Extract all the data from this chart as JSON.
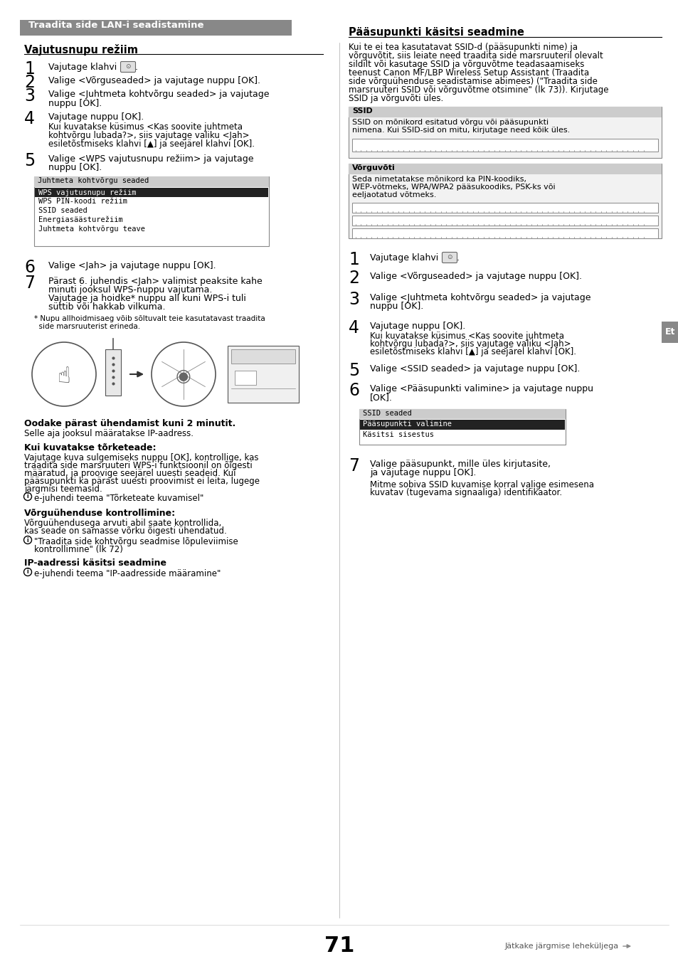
{
  "bg_color": "#ffffff",
  "header_bg": "#888888",
  "header_text": "Traadita side LAN-i seadistamine",
  "header_text_color": "#ffffff",
  "left_section_title": "Vajutusnupu režiim",
  "right_section_title": "Pääsupunkti käsitsi seadmine",
  "left_menu_title": "Juhtmeta kohtvõrgu seaded",
  "left_menu_items": [
    {
      "text": "WPS vajutusnupu režiim",
      "selected": true
    },
    {
      "text": "WPS PIN-koodi režiim",
      "selected": false
    },
    {
      "text": "SSID seaded",
      "selected": false
    },
    {
      "text": "Energiasäästurežiim",
      "selected": false
    },
    {
      "text": "Juhtmeta kohtvõrgu teave",
      "selected": false
    }
  ],
  "wait_text": "Oodake pärast ühendamist kuni 2 minutit.",
  "wait_subtext": "Selle aja jooksul määratakse IP-aadress.",
  "error_title": "Kui kuvatakse tõrketeade:",
  "error_text1": "Vajutage kuva sulgemiseks nuppu [OK], kontrollige, kas",
  "error_text2": "traadita side marsruuteri WPS-i funktsioonil on õigesti",
  "error_text3": "määratud, ja proovige seejärel uuesti seadeid. Kui",
  "error_text4": "pääsupunkti ka pärast uuesti proovimist ei leita, lugege",
  "error_text5": "järgmisi teemasid.",
  "error_link": "e-juhendi teema \"Tõrketeate kuvamisel\"",
  "network_title": "Võrguühenduse kontrollimine:",
  "network_text1": "Võrguühendusega arvuti abil saate kontrollida,",
  "network_text2": "kas seade on samasse võrku õigesti ühendatud.",
  "network_link1": "\"Traadita side kohtvõrgu seadmise lõpuleviimise",
  "network_link2": "kontrollimine\" (lk 72)",
  "ip_title": "IP-aadressi käsitsi seadmine",
  "ip_link": "e-juhendi teema \"IP-aadresside määramine\"",
  "right_intro1": "Kui te ei tea kasutatavat SSID-d (pääsupunkti nime) ja",
  "right_intro2": "võrguvõtit, siis leiate need traadita side marsruuteril olevalt",
  "right_intro3": "sildilt või kasutage SSID ja võrguvõtme teadasaamiseks",
  "right_intro4": "teenust Canon MF/LBP Wireless Setup Assistant (Traadita",
  "right_intro5": "side võrguühenduse seadistamise abimees) (\"Traadita side",
  "right_intro6": "marsruuteri SSID või võrguvõtme otsimine\" (lk 73)). Kirjutage",
  "right_intro7": "SSID ja võrguvõti üles.",
  "ssid_box_title": "SSID",
  "ssid_box_text1": "SSID on mõnikord esitatud võrgu või pääsupunkti",
  "ssid_box_text2": "nimena. Kui SSID-sid on mitu, kirjutage need kõik üles.",
  "net_box_title": "Võrguvõti",
  "net_box_text1": "Seda nimetatakse mõnikord ka PIN-koodiks,",
  "net_box_text2": "WEP-võtmeks, WPA/WPA2 pääsukoodiks, PSK-ks või",
  "net_box_text3": "eeljaotatud võtmeks.",
  "right_menu_title": "SSID seaded",
  "right_menu_items": [
    {
      "text": "Pääsupunkti valimine",
      "selected": true
    },
    {
      "text": "Käsitsi sisestus",
      "selected": false
    }
  ],
  "page_num": "71",
  "continue_text": "Jätkake järgmise leheküljega",
  "et_label": "Et",
  "footnote1": "* Nupu allhoidmisaeg võib sõltuvalt teie kasutatavast traadita",
  "footnote2": "  side marsruuterist erineda."
}
